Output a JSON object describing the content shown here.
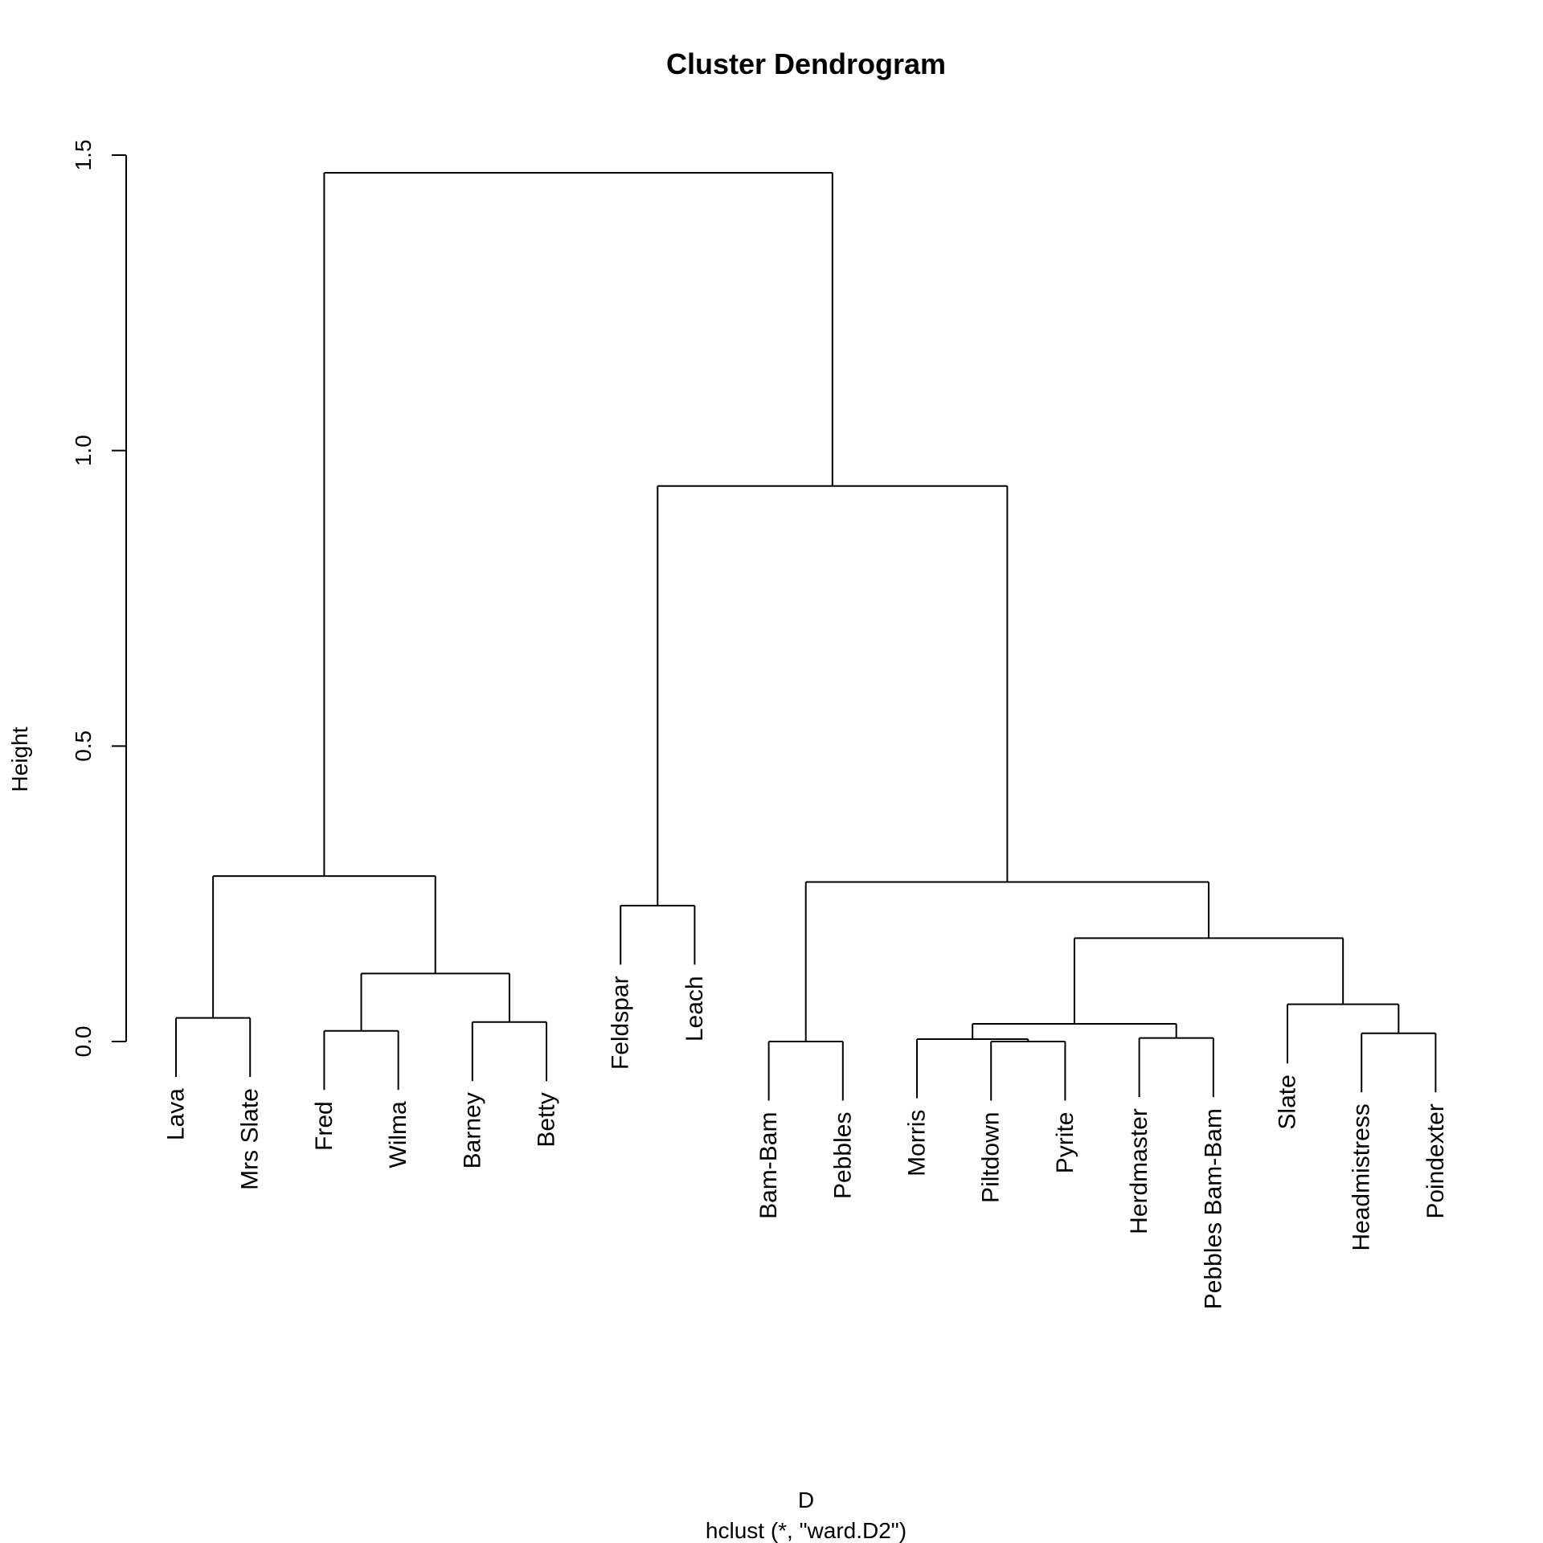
{
  "chart_data": {
    "type": "dendrogram",
    "title": "Cluster Dendrogram",
    "xlabel": "D",
    "sublabel": "hclust (*, \"ward.D2\")",
    "ylabel": "Height",
    "ylim": [
      0,
      1.5
    ],
    "yticks": [
      {
        "value": 0.0,
        "label": "0.0"
      },
      {
        "value": 0.5,
        "label": "0.5"
      },
      {
        "value": 1.0,
        "label": "1.0"
      },
      {
        "value": 1.5,
        "label": "1.5"
      }
    ],
    "leaves": [
      "Lava",
      "Mrs Slate",
      "Fred",
      "Wilma",
      "Barney",
      "Betty",
      "Feldspar",
      "Leach",
      "Bam-Bam",
      "Pebbles",
      "Morris",
      "Piltdown",
      "Pyrite",
      "Herdmaster",
      "Pebbles Bam-Bam",
      "Slate",
      "Headmistress",
      "Poindexter"
    ],
    "tree": {
      "h": 1.47,
      "c": [
        {
          "h": 0.28,
          "c": [
            {
              "h": 0.04,
              "c": [
                "Lava",
                "Mrs Slate"
              ]
            },
            {
              "h": 0.115,
              "c": [
                {
                  "h": 0.018,
                  "c": [
                    "Fred",
                    "Wilma"
                  ]
                },
                {
                  "h": 0.033,
                  "c": [
                    "Barney",
                    "Betty"
                  ]
                }
              ]
            }
          ]
        },
        {
          "h": 0.94,
          "c": [
            {
              "h": 0.23,
              "c": [
                "Feldspar",
                "Leach"
              ]
            },
            {
              "h": 0.27,
              "c": [
                {
                  "h": 0.0,
                  "c": [
                    "Bam-Bam",
                    "Pebbles"
                  ]
                },
                {
                  "h": 0.175,
                  "c": [
                    {
                      "h": 0.03,
                      "c": [
                        {
                          "h": 0.004,
                          "c": [
                            "Morris",
                            {
                              "h": 0.0,
                              "c": [
                                "Piltdown",
                                "Pyrite"
                              ]
                            }
                          ]
                        },
                        {
                          "h": 0.006,
                          "c": [
                            "Herdmaster",
                            "Pebbles Bam-Bam"
                          ]
                        }
                      ]
                    },
                    {
                      "h": 0.063,
                      "c": [
                        "Slate",
                        {
                          "h": 0.014,
                          "c": [
                            "Headmistress",
                            "Poindexter"
                          ]
                        }
                      ]
                    }
                  ]
                }
              ]
            }
          ]
        }
      ]
    }
  }
}
